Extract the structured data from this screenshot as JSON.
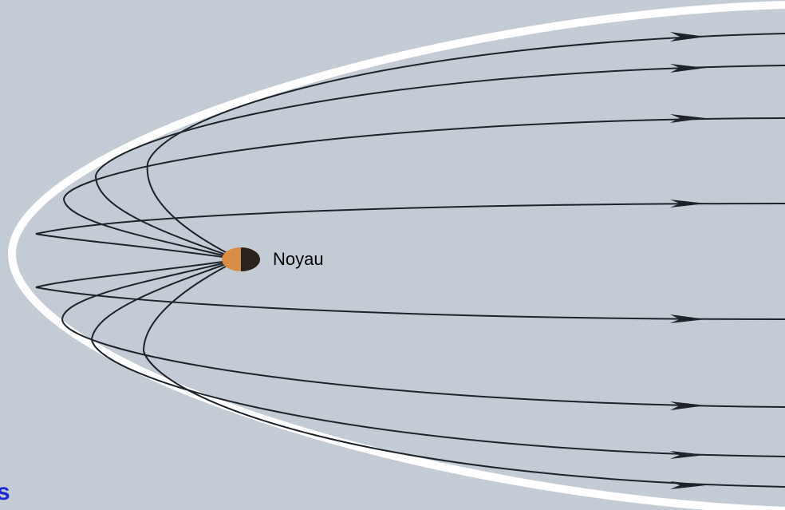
{
  "labels": {
    "nucleus": "Noyau",
    "fragment": "s"
  }
}
